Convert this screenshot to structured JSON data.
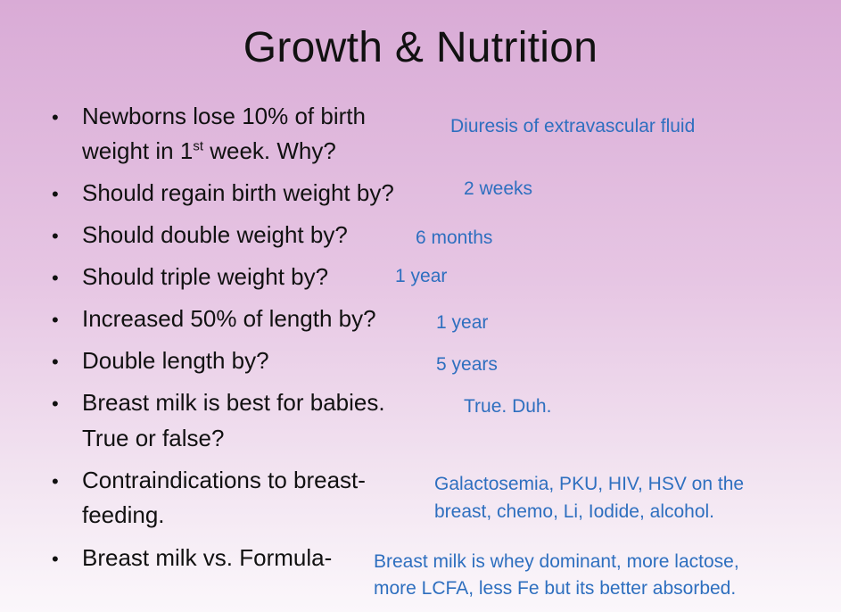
{
  "slide": {
    "title": "Growth & Nutrition",
    "bullet_glyph": "•",
    "items": [
      {
        "question_line1": "Newborns lose 10% of birth",
        "question_line2_pre": "weight in 1",
        "question_line2_sup": "st",
        "question_line2_post": " week. Why?",
        "answer": "Diuresis of extravascular fluid"
      },
      {
        "question": "Should regain birth weight by?",
        "answer": "2 weeks"
      },
      {
        "question": "Should double weight by?",
        "answer": "6 months"
      },
      {
        "question": "Should triple weight by?",
        "answer": "1 year"
      },
      {
        "question": "Increased 50% of length by?",
        "answer": "1 year"
      },
      {
        "question": "Double length by?",
        "answer": "5 years"
      },
      {
        "question_line1": "Breast milk is best for babies.",
        "question_line2": "True or false?",
        "answer": "True. Duh."
      },
      {
        "question_line1": "Contraindications to breast-",
        "question_line2": "feeding.",
        "answer_line1": "Galactosemia, PKU, HIV, HSV on the",
        "answer_line2": "breast, chemo, Li, Iodide, alcohol."
      },
      {
        "question": "Breast milk vs. Formula-",
        "answer_line1": "Breast milk is whey dominant, more lactose,",
        "answer_line2": "more LCFA, less Fe but its better absorbed."
      }
    ]
  }
}
